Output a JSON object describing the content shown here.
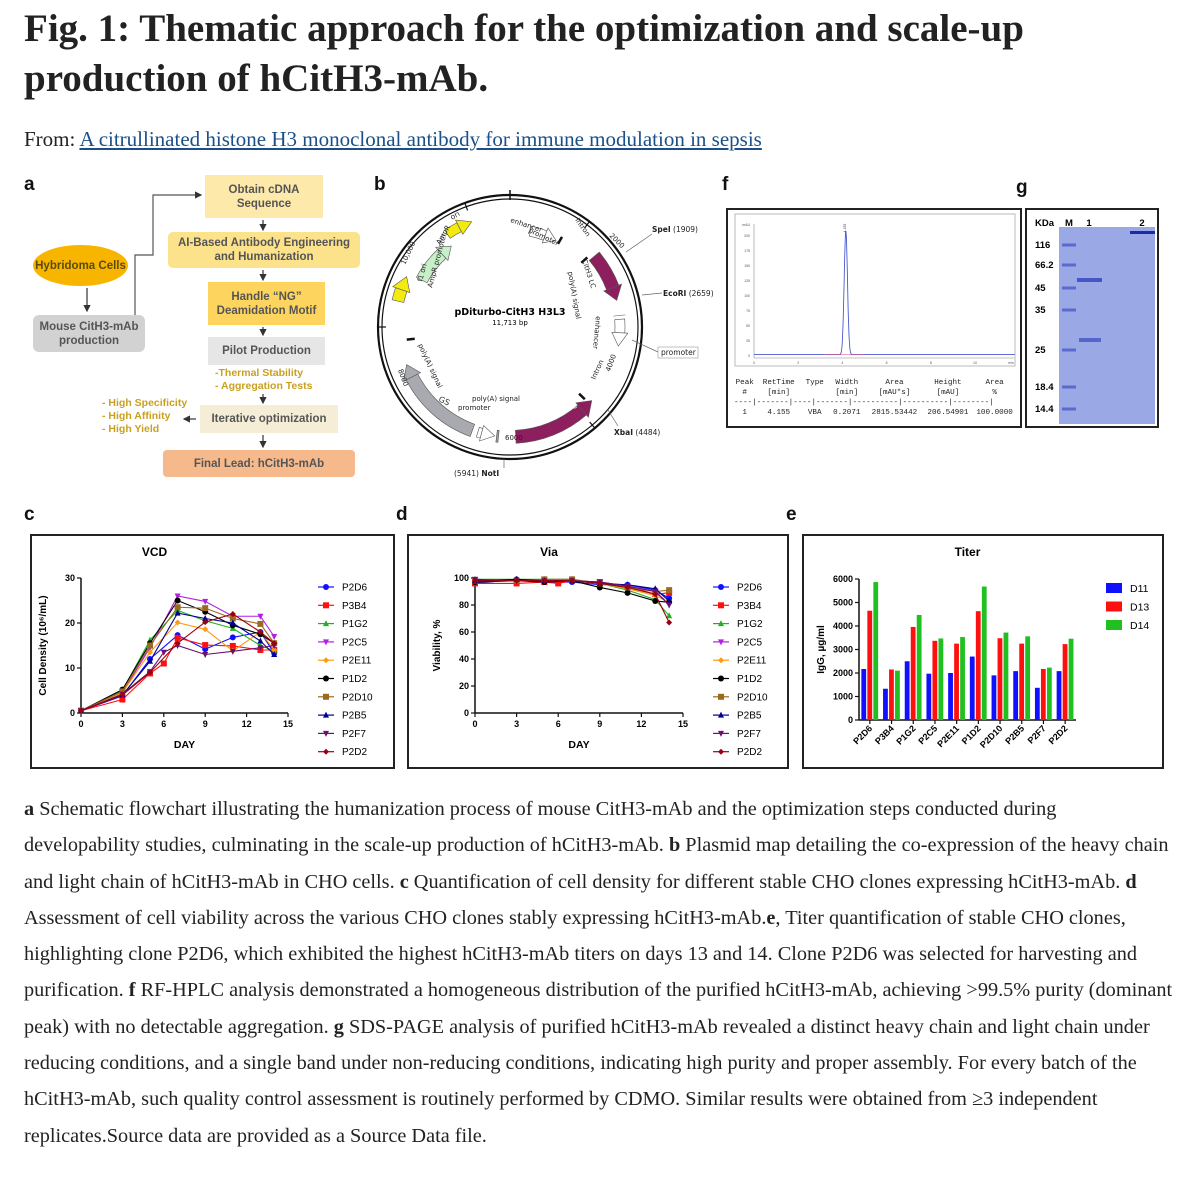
{
  "header": {
    "title": "Fig. 1: Thematic approach for the optimization and scale-up production of hCitH3-mAb.",
    "from_label": "From:",
    "source_link": "A citrullinated histone H3 monoclonal antibody for immune modulation in sepsis"
  },
  "panel_labels": {
    "a": "a",
    "b": "b",
    "c": "c",
    "d": "d",
    "e": "e",
    "f": "f",
    "g": "g"
  },
  "flowchart": {
    "hybridoma": "Hybridoma Cells",
    "mouse": "Mouse CitH3-mAb production",
    "cdna": "Obtain cDNA Sequence",
    "ai": "AI-Based Antibody Engineering and Humanization",
    "ng": "Handle “NG” Deamidation Motif",
    "pilot": "Pilot Production",
    "tests": [
      "-Thermal Stability",
      "- Aggregation Tests"
    ],
    "iterative": "Iterative optimization",
    "goals": [
      "- High Specificity",
      "- High Affinity",
      "- High Yield"
    ],
    "final": "Final Lead: hCitH3-mAb",
    "colors": {
      "hybridoma": "#f7b500",
      "mouse": "#d2d2d2",
      "cdna": "#fde9a9",
      "ai": "#fde28c",
      "ng": "#fdd45e",
      "pilot": "#e6e6e6",
      "iterative": "#f5edd6",
      "final": "#f6b98c",
      "note": "#c9a020"
    }
  },
  "plasmid": {
    "name": "pDiturbo-CitH3 H3L3",
    "size": "11,713 bp",
    "features": {
      "enhancer": "enhancer",
      "promoter": "promoter",
      "intron": "Intron",
      "lc": "CitH3 LC",
      "polya": "poly(A) signal",
      "hc": "CitH3 HC",
      "gs": "GS",
      "f1ori": "f1 ori",
      "ampr": "AmpR",
      "ampr_promoter": "AmpR promoter",
      "ori": "ori"
    },
    "sites": [
      {
        "name": "SpeI",
        "pos": "(1909)"
      },
      {
        "name": "EcoRI",
        "pos": "(2659)"
      },
      {
        "name": "XbaI",
        "pos": "(4484)"
      },
      {
        "name": "NotI",
        "pos": "(5941)"
      }
    ],
    "ticks": [
      "2000",
      "4000",
      "6000",
      "8000",
      "10,000"
    ],
    "colors": {
      "cds": "#8e1f5e",
      "marker": "#f2ea10",
      "ampr": "#c8f0c8",
      "gs": "#a8aab0",
      "box": "#9a9ca0"
    }
  },
  "hplc": {
    "y_ticks": [
      "0",
      "25",
      "50",
      "75",
      "100",
      "125",
      "150",
      "175",
      "200"
    ],
    "x_ticks": [
      "0",
      "2",
      "4",
      "6",
      "8",
      "10"
    ],
    "x_unit": "min",
    "y_unit": "mAU",
    "peak_label": "4.155",
    "peak_rt": 4.155,
    "peak_height": 206.5,
    "table_headers": [
      [
        "Peak",
        "#"
      ],
      [
        "RetTime",
        "[min]"
      ],
      [
        "Type",
        ""
      ],
      [
        "Width",
        "[min]"
      ],
      [
        "Area",
        "[mAU*s]"
      ],
      [
        "Height",
        "[mAU]"
      ],
      [
        "Area",
        "%"
      ]
    ],
    "table_row": [
      "1",
      "4.155",
      "VBA",
      "0.2071",
      "2815.53442",
      "206.54901",
      "100.0000"
    ]
  },
  "gel": {
    "unit": "KDa",
    "lanes": [
      "M",
      "1",
      "2"
    ],
    "markers": [
      "116",
      "66.2",
      "45",
      "35",
      "25",
      "18.4",
      "14.4"
    ],
    "gel_color": "#9ba8e6",
    "band_color": "#3848c0"
  },
  "chart_data": [
    {
      "type": "line",
      "title": "VCD",
      "xlabel": "DAY",
      "ylabel": "Cell Density (10⁶/mL)",
      "xlim": [
        0,
        15
      ],
      "ylim": [
        0,
        30
      ],
      "x_ticks": [
        0,
        3,
        6,
        9,
        12,
        15
      ],
      "y_ticks": [
        0,
        10,
        20,
        30
      ],
      "legend": "right",
      "grid": false,
      "x": [
        0,
        3,
        5,
        6,
        7,
        9,
        11,
        13,
        14
      ],
      "series": [
        {
          "name": "P2D6",
          "color": "#1010ff",
          "marker": "circle",
          "values": [
            0.5,
            3.8,
            12,
            null,
            17.3,
            14.2,
            16.8,
            18,
            13.3
          ]
        },
        {
          "name": "P3B4",
          "color": "#ff1010",
          "marker": "square",
          "values": [
            0.5,
            3,
            8.8,
            11,
            16.7,
            15.1,
            14.9,
            14,
            14
          ]
        },
        {
          "name": "P1G2",
          "color": "#20b020",
          "marker": "triangle-up",
          "values": [
            0.5,
            5,
            16.2,
            null,
            22.8,
            20.5,
            18.8,
            15,
            13.8
          ]
        },
        {
          "name": "P2C5",
          "color": "#b020e0",
          "marker": "triangle-down",
          "values": [
            0.5,
            4.5,
            14.5,
            null,
            26,
            24.8,
            21.5,
            21.5,
            17
          ]
        },
        {
          "name": "P2E11",
          "color": "#ff9a10",
          "marker": "diamond",
          "values": [
            0.5,
            4.5,
            13.5,
            null,
            20.1,
            18.6,
            13.8,
            18,
            14
          ]
        },
        {
          "name": "P1D2",
          "color": "#000000",
          "marker": "circle",
          "values": [
            0.5,
            5.2,
            15.5,
            null,
            25,
            22.5,
            19.5,
            17.5,
            15.5
          ]
        },
        {
          "name": "P2D10",
          "color": "#9a6a20",
          "marker": "square",
          "values": [
            0.5,
            4.8,
            15,
            null,
            23.5,
            23.3,
            21,
            19.8,
            15.5
          ]
        },
        {
          "name": "P2B5",
          "color": "#000090",
          "marker": "triangle-up",
          "values": [
            0.5,
            4,
            11.5,
            null,
            22.2,
            21,
            20,
            16,
            13
          ]
        },
        {
          "name": "P2F7",
          "color": "#6a1070",
          "marker": "triangle-down",
          "values": [
            0.5,
            4.2,
            9.2,
            13.5,
            15,
            13,
            13.7,
            14.5,
            15
          ]
        },
        {
          "name": "P2D2",
          "color": "#9a0010",
          "marker": "diamond",
          "values": [
            0.5,
            4,
            9,
            null,
            15.5,
            20.2,
            22,
            18,
            15.5
          ]
        }
      ]
    },
    {
      "type": "line",
      "title": "Via",
      "xlabel": "DAY",
      "ylabel": "Viability, %",
      "xlim": [
        0,
        15
      ],
      "ylim": [
        0,
        100
      ],
      "x_ticks": [
        0,
        3,
        6,
        9,
        12,
        15
      ],
      "y_ticks": [
        0,
        20,
        40,
        60,
        80,
        100
      ],
      "legend": "right",
      "grid": false,
      "x": [
        0,
        3,
        5,
        6,
        7,
        9,
        11,
        13,
        14
      ],
      "series": [
        {
          "name": "P2D6",
          "color": "#1010ff",
          "marker": "circle",
          "values": [
            96,
            99,
            97,
            null,
            97,
            95,
            95,
            91,
            85
          ]
        },
        {
          "name": "P3B4",
          "color": "#ff1010",
          "marker": "square",
          "values": [
            96,
            96,
            97,
            96,
            98,
            97,
            94,
            88,
            89
          ]
        },
        {
          "name": "P1G2",
          "color": "#20b020",
          "marker": "triangle-up",
          "values": [
            99,
            99,
            99,
            null,
            99,
            96,
            91,
            84,
            72
          ]
        },
        {
          "name": "P2C5",
          "color": "#b020e0",
          "marker": "triangle-down",
          "values": [
            99,
            98,
            98,
            null,
            98,
            97,
            94,
            90,
            81
          ]
        },
        {
          "name": "P2E11",
          "color": "#ff9a10",
          "marker": "diamond",
          "values": [
            97,
            98,
            98,
            null,
            98,
            96,
            92,
            87,
            82
          ]
        },
        {
          "name": "P1D2",
          "color": "#000000",
          "marker": "circle",
          "values": [
            97,
            98,
            97,
            null,
            98,
            93,
            89,
            83,
            82
          ]
        },
        {
          "name": "P2D10",
          "color": "#9a6a20",
          "marker": "square",
          "values": [
            98,
            98,
            99,
            null,
            99,
            96,
            93,
            90,
            91
          ]
        },
        {
          "name": "P2B5",
          "color": "#000090",
          "marker": "triangle-up",
          "values": [
            98,
            99,
            98,
            null,
            98,
            96,
            95,
            92,
            83
          ]
        },
        {
          "name": "P2F7",
          "color": "#6a1070",
          "marker": "triangle-down",
          "values": [
            99,
            98,
            98,
            null,
            98,
            97,
            94,
            90,
            80
          ]
        },
        {
          "name": "P2D2",
          "color": "#9a0010",
          "marker": "diamond",
          "values": [
            98,
            98,
            98,
            null,
            98,
            96,
            93,
            88,
            67
          ]
        }
      ]
    },
    {
      "type": "bar",
      "title": "Titer",
      "xlabel": "",
      "ylabel": "IgG, µg/ml",
      "ylim": [
        0,
        6000
      ],
      "y_ticks": [
        0,
        1000,
        2000,
        3000,
        4000,
        5000,
        6000
      ],
      "legend": "right",
      "grid": false,
      "categories": [
        "P2D6",
        "P3B4",
        "P1G2",
        "P2C5",
        "P2E11",
        "P1D2",
        "P2D10",
        "P2B5",
        "P2F7",
        "P2D2"
      ],
      "series": [
        {
          "name": "D11",
          "color": "#1010ff",
          "values": [
            2170,
            1330,
            2500,
            1970,
            2000,
            2700,
            1900,
            2080,
            1370,
            2080
          ]
        },
        {
          "name": "D13",
          "color": "#ff1010",
          "values": [
            4650,
            2150,
            3960,
            3370,
            3250,
            4630,
            3480,
            3250,
            2170,
            3230
          ]
        },
        {
          "name": "D14",
          "color": "#20c020",
          "values": [
            5870,
            2100,
            4470,
            3470,
            3530,
            5680,
            3720,
            3560,
            2230,
            3460
          ]
        }
      ]
    }
  ],
  "caption": [
    {
      "b": "a",
      "t": " Schematic flowchart illustrating the humanization process of mouse CitH3-mAb and the optimization steps conducted during developability studies, culminating in the scale-up production of hCitH3-mAb. "
    },
    {
      "b": "b",
      "t": " Plasmid map detailing the co-expression of the heavy chain and light chain of hCitH3-mAb in CHO cells. "
    },
    {
      "b": "c",
      "t": " Quantification of cell density for different stable CHO clones expressing hCitH3-mAb. "
    },
    {
      "b": "d",
      "t": " Assessment of cell viability across the various CHO clones stably expressing hCitH3-mAb."
    },
    {
      "b": "e",
      "t": ", Titer quantification of stable CHO clones, highlighting clone P2D6, which exhibited the highest hCitH3-mAb titers on days 13 and 14. Clone P2D6 was selected for harvesting and purification. "
    },
    {
      "b": "f",
      "t": " RF-HPLC analysis demonstrated a homogeneous distribution of the purified hCitH3-mAb, achieving >99.5% purity (dominant peak) with no detectable aggregation. "
    },
    {
      "b": "g",
      "t": " SDS-PAGE analysis of purified hCitH3-mAb revealed a distinct heavy chain and light chain under reducing conditions, and a single band under non-reducing conditions, indicating high purity and proper assembly. For every batch of the hCitH3-mAb, such quality control assessment is routinely performed by CDMO. Similar results were obtained from ≥3 independent replicates.Source data are provided as a Source Data file."
    }
  ]
}
